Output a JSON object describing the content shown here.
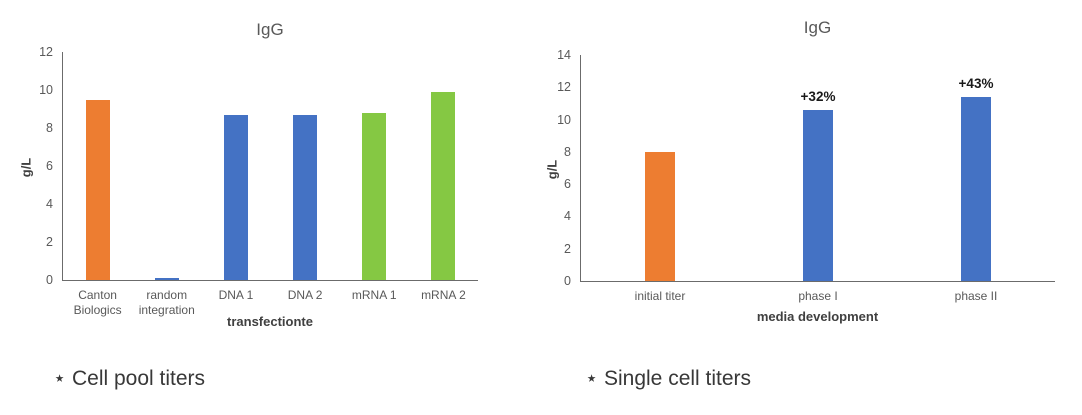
{
  "captions": [
    "⋆ Cell pool titers",
    "⋆ Single cell titers"
  ],
  "colors": {
    "orange": "#ED7D31",
    "blue": "#4472C4",
    "green": "#85C843",
    "axis_line": "#6B6B6B",
    "tick_text": "#595959",
    "title_text": "#595959",
    "caption_text": "#383838"
  },
  "chart_data": [
    {
      "type": "bar",
      "title": "IgG",
      "xlabel": "transfectionte",
      "ylabel": "g/L",
      "ylim": [
        0,
        12
      ],
      "ytick_step": 2,
      "grid": false,
      "legend": false,
      "categories": [
        "Canton Biologics",
        "random integration",
        "DNA 1",
        "DNA 2",
        "mRNA 1",
        "mRNA 2"
      ],
      "values": [
        9.5,
        0.1,
        8.7,
        8.7,
        8.8,
        9.9
      ],
      "bar_colors": [
        "#ED7D31",
        "#4472C4",
        "#4472C4",
        "#4472C4",
        "#85C843",
        "#85C843"
      ],
      "bar_labels": [
        "",
        "",
        "",
        "",
        "",
        ""
      ]
    },
    {
      "type": "bar",
      "title": "IgG",
      "xlabel": "media development",
      "ylabel": "g/L",
      "ylim": [
        0,
        14
      ],
      "ytick_step": 2,
      "grid": false,
      "legend": false,
      "categories": [
        "initial titer",
        "phase I",
        "phase II"
      ],
      "values": [
        8,
        10.6,
        11.4
      ],
      "bar_colors": [
        "#ED7D31",
        "#4472C4",
        "#4472C4"
      ],
      "bar_labels": [
        "",
        "+32%",
        "+43%"
      ]
    }
  ]
}
